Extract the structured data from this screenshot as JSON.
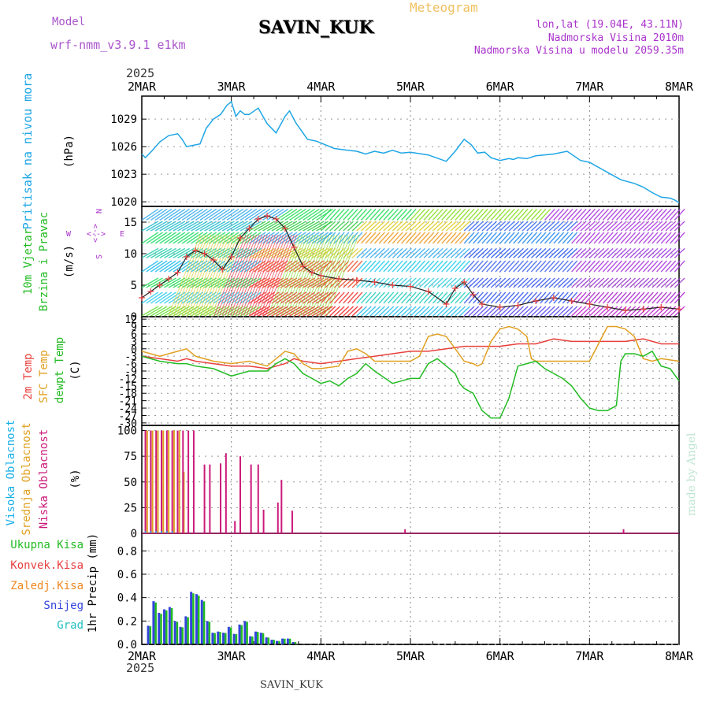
{
  "header": {
    "model_label": "Model",
    "model_name": "wrf-nmm_v3.9.1 e1km",
    "location": "SAVIN_KUK",
    "title": "Meteogram",
    "lonlat": "lon,lat (19.04E, 43.11N)",
    "altitude": "Nadmorska Visina 2010m",
    "model_altitude": "Nadmorska Visina u modelu 2059.35m",
    "year": "2025",
    "footer_location": "SAVIN_KUK",
    "credit": "made by Angel"
  },
  "colors": {
    "pressure": "#1ea6e6",
    "temp2m": "#e8403c",
    "sfc": "#e0a020",
    "dewpt": "#22bb22",
    "cloud_high": "#18b0e8",
    "cloud_mid": "#e0a020",
    "cloud_low": "#cc1a7a",
    "precip_total": "#22bb22",
    "precip_conv": "#e84040",
    "precip_freezing": "#ee8822",
    "precip_snow": "#3344dd",
    "precip_hail": "#22c0c0",
    "wind_speed_marker": "#e84040"
  },
  "chart_data": [
    {
      "type": "line",
      "panel": "pressure",
      "labels": [
        "Pritisak na nivou mora",
        "(hPa)"
      ],
      "x_ticks": [
        "2MAR",
        "3MAR",
        "4MAR",
        "5MAR",
        "6MAR",
        "7MAR",
        "8MAR"
      ],
      "xlim": [
        0,
        6
      ],
      "ylim": [
        1019.5,
        1031.5
      ],
      "y_ticks": [
        1020,
        1023,
        1026,
        1029
      ],
      "series": [
        {
          "x": [
            0,
            0.04,
            0.12,
            0.2,
            0.3,
            0.4,
            0.45,
            0.5,
            0.55,
            0.65,
            0.72,
            0.8,
            0.88,
            0.95,
            1.0,
            1.05,
            1.1,
            1.15,
            1.2,
            1.3,
            1.4,
            1.5,
            1.6,
            1.65,
            1.72,
            1.8,
            1.85,
            1.95,
            2.05,
            2.15,
            2.3,
            2.4,
            2.5,
            2.6,
            2.7,
            2.8,
            2.9,
            3.0,
            3.2,
            3.4,
            3.5,
            3.6,
            3.68,
            3.75,
            3.83,
            3.9,
            4.0,
            4.1,
            4.15,
            4.2,
            4.3,
            4.4,
            4.6,
            4.75,
            4.9,
            5.0,
            5.2,
            5.35,
            5.5,
            5.6,
            5.7,
            5.8,
            5.9,
            5.95,
            6.0
          ],
          "values": [
            1025.2,
            1024.8,
            1025.6,
            1026.5,
            1027.2,
            1027.4,
            1026.8,
            1026.0,
            1026.1,
            1026.3,
            1028.0,
            1029.0,
            1029.5,
            1030.5,
            1030.9,
            1029.3,
            1029.9,
            1029.5,
            1029.5,
            1030.2,
            1028.5,
            1027.5,
            1029.3,
            1029.9,
            1028.6,
            1027.5,
            1026.8,
            1026.6,
            1026.2,
            1025.8,
            1025.6,
            1025.5,
            1025.2,
            1025.5,
            1025.3,
            1025.6,
            1025.3,
            1025.4,
            1025.1,
            1024.4,
            1025.5,
            1026.8,
            1026.2,
            1025.3,
            1025.4,
            1024.8,
            1024.5,
            1024.7,
            1024.6,
            1024.8,
            1024.7,
            1025.0,
            1025.2,
            1025.5,
            1024.5,
            1024.3,
            1023.2,
            1022.4,
            1022.0,
            1021.6,
            1021.0,
            1020.5,
            1020.4,
            1020.2,
            1019.9
          ]
        }
      ]
    },
    {
      "type": "line",
      "panel": "wind",
      "labels": [
        "10m Vjetar",
        "Brzina i Pravac",
        "(m/s)"
      ],
      "compass": [
        "N",
        "S",
        "W",
        "E",
        "<",
        "--",
        ">"
      ],
      "ylim": [
        0,
        17.5
      ],
      "y_ticks": [
        0,
        5,
        10,
        15
      ],
      "series": [
        {
          "name": "speed",
          "x": [
            0,
            0.1,
            0.2,
            0.3,
            0.4,
            0.5,
            0.6,
            0.7,
            0.8,
            0.9,
            1.0,
            1.1,
            1.2,
            1.3,
            1.4,
            1.5,
            1.6,
            1.7,
            1.8,
            1.9,
            2.0,
            2.2,
            2.4,
            2.6,
            2.8,
            3.0,
            3.2,
            3.4,
            3.5,
            3.6,
            3.7,
            3.8,
            4.0,
            4.2,
            4.4,
            4.6,
            4.8,
            5.0,
            5.2,
            5.4,
            5.6,
            5.8,
            6.0
          ],
          "values": [
            3.0,
            4.0,
            5.0,
            6.0,
            7.0,
            9.5,
            10.5,
            10.0,
            9.0,
            7.5,
            9.5,
            12.5,
            14.0,
            15.5,
            16.0,
            15.5,
            14.0,
            11.0,
            8.0,
            7.0,
            6.5,
            6.0,
            5.8,
            5.5,
            5.0,
            4.8,
            4.0,
            2.0,
            4.5,
            5.5,
            3.5,
            2.0,
            1.5,
            1.8,
            2.5,
            3.0,
            2.5,
            2.0,
            1.5,
            1.0,
            1.2,
            1.5,
            1.2
          ]
        }
      ]
    },
    {
      "type": "line",
      "panel": "temperature",
      "labels": [
        "2m Temp",
        "SFC Temp",
        "dewpt Temp",
        "(C)"
      ],
      "ylim": [
        -31,
        13
      ],
      "y_ticks": [
        -30,
        -27,
        -24,
        -21,
        -18,
        -15,
        -12,
        -9,
        -6,
        -3,
        0,
        3,
        6,
        9,
        12
      ],
      "series": [
        {
          "name": "2m Temp",
          "x": [
            0,
            0.2,
            0.4,
            0.5,
            0.6,
            0.8,
            1.0,
            1.2,
            1.4,
            1.6,
            1.7,
            1.8,
            2.0,
            2.2,
            2.4,
            2.6,
            2.8,
            3.0,
            3.2,
            3.4,
            3.6,
            3.8,
            4.0,
            4.2,
            4.4,
            4.5,
            4.6,
            4.8,
            5.0,
            5.2,
            5.4,
            5.6,
            5.8,
            6.0
          ],
          "values": [
            -3,
            -4,
            -5,
            -4,
            -5,
            -6,
            -7,
            -7,
            -8,
            -6,
            -4,
            -5,
            -6,
            -5,
            -4,
            -3,
            -2,
            -1,
            -1,
            0,
            1,
            1,
            1,
            2,
            2,
            3,
            4,
            3,
            3,
            3,
            3,
            4,
            2,
            2
          ]
        },
        {
          "name": "SFC Temp",
          "x": [
            0,
            0.2,
            0.4,
            0.5,
            0.6,
            0.8,
            1.0,
            1.2,
            1.4,
            1.5,
            1.6,
            1.7,
            1.8,
            1.9,
            2.0,
            2.2,
            2.3,
            2.4,
            2.5,
            2.6,
            2.8,
            3.0,
            3.1,
            3.2,
            3.3,
            3.4,
            3.6,
            3.7,
            3.75,
            3.8,
            3.9,
            4.0,
            4.1,
            4.2,
            4.3,
            4.35,
            4.4,
            4.6,
            4.8,
            5.0,
            5.1,
            5.2,
            5.3,
            5.4,
            5.5,
            5.6,
            5.7,
            5.8,
            6.0
          ],
          "values": [
            -1,
            -3,
            -1,
            0,
            -3,
            -5,
            -6,
            -5,
            -7,
            -4,
            -1,
            -2,
            -6,
            -8,
            -8,
            -7,
            -1,
            0,
            -2,
            -5,
            -5,
            -5,
            -3,
            5,
            6,
            5,
            -5,
            -6,
            -7,
            -6,
            3,
            8,
            9,
            8,
            5,
            -4,
            -5,
            -5,
            -5,
            -5,
            2,
            9,
            9,
            8,
            5,
            -4,
            -5,
            -4,
            -5
          ]
        },
        {
          "name": "dewpt Temp",
          "x": [
            0,
            0.2,
            0.4,
            0.5,
            0.6,
            0.8,
            1.0,
            1.2,
            1.4,
            1.5,
            1.6,
            1.7,
            1.8,
            1.9,
            2.0,
            2.1,
            2.2,
            2.3,
            2.4,
            2.5,
            2.6,
            2.8,
            3.0,
            3.1,
            3.2,
            3.3,
            3.4,
            3.5,
            3.55,
            3.6,
            3.7,
            3.8,
            3.9,
            4.0,
            4.1,
            4.2,
            4.3,
            4.4,
            4.5,
            4.6,
            4.7,
            4.8,
            4.9,
            5.0,
            5.1,
            5.2,
            5.3,
            5.35,
            5.4,
            5.5,
            5.6,
            5.7,
            5.8,
            5.9,
            6.0
          ],
          "values": [
            -3,
            -5,
            -6,
            -6,
            -7,
            -8,
            -11,
            -9,
            -9,
            -6,
            -4,
            -6,
            -10,
            -12,
            -14,
            -13,
            -15,
            -12,
            -10,
            -6,
            -9,
            -14,
            -12,
            -12,
            -6,
            -4,
            -7,
            -10,
            -14,
            -16,
            -18,
            -25,
            -28,
            -28,
            -20,
            -7,
            -6,
            -5,
            -8,
            -10,
            -12,
            -15,
            -20,
            -24,
            -25,
            -25,
            -23,
            -5,
            -2,
            -2,
            -3,
            -1,
            -7,
            -8,
            -13
          ]
        }
      ]
    },
    {
      "type": "bar",
      "panel": "clouds",
      "labels": [
        "Visoka Oblacnost",
        "Srednja Oblacnost",
        "Niska Oblacnost",
        "(%)"
      ],
      "ylim": [
        0,
        105
      ],
      "y_ticks": [
        0,
        25,
        50,
        75,
        100
      ],
      "series": [
        {
          "name": "Srednja Oblacnost",
          "x": [
            0.06,
            0.12,
            0.18,
            0.24,
            0.3,
            0.36,
            0.42,
            0.47
          ],
          "values": [
            100,
            100,
            100,
            100,
            100,
            100,
            100,
            60
          ]
        },
        {
          "name": "Niska Oblacnost",
          "x": [
            0.04,
            0.1,
            0.16,
            0.22,
            0.28,
            0.34,
            0.4,
            0.46,
            0.52,
            0.58,
            0.64,
            0.7,
            0.76,
            0.8,
            0.88,
            0.94,
            1.0,
            1.04,
            1.1,
            1.18,
            1.22,
            1.3,
            1.36,
            1.44,
            1.52,
            1.56,
            1.6,
            1.68,
            2.94,
            5.38
          ],
          "values": [
            100,
            100,
            100,
            100,
            100,
            100,
            100,
            100,
            100,
            100,
            0,
            67,
            67,
            0,
            68,
            78,
            0,
            12,
            75,
            0,
            67,
            67,
            23,
            0,
            30,
            52,
            0,
            22,
            4,
            4
          ]
        },
        {
          "name": "Visoka Oblacnost",
          "x": [
            0.04,
            0.1,
            0.16,
            0.22,
            0.28,
            0.34
          ],
          "values": [
            2,
            2,
            2,
            2,
            2,
            2
          ]
        }
      ]
    },
    {
      "type": "bar",
      "panel": "precip",
      "labels": [
        "Ukupna Kisa",
        "Konvek.Kisa",
        "Zaledj.Kisa",
        "Snijeg",
        "Grad",
        "1hr Precip (mm)"
      ],
      "ylim": [
        0,
        0.95
      ],
      "y_ticks": [
        0,
        0.2,
        0.4,
        0.6,
        0.8
      ],
      "series": [
        {
          "name": "Snijeg",
          "x": [
            0.08,
            0.14,
            0.2,
            0.26,
            0.32,
            0.38,
            0.44,
            0.5,
            0.56,
            0.62,
            0.68,
            0.74,
            0.8,
            0.86,
            0.92,
            0.98,
            1.04,
            1.1,
            1.16,
            1.22,
            1.28,
            1.34,
            1.4,
            1.46,
            1.52,
            1.58,
            1.64,
            1.7
          ],
          "values": [
            0.16,
            0.37,
            0.27,
            0.3,
            0.32,
            0.2,
            0.15,
            0.24,
            0.45,
            0.43,
            0.38,
            0.2,
            0.1,
            0.11,
            0.1,
            0.15,
            0.09,
            0.17,
            0.2,
            0.07,
            0.11,
            0.1,
            0.06,
            0.04,
            0.03,
            0.05,
            0.05,
            0.02
          ]
        }
      ]
    }
  ]
}
